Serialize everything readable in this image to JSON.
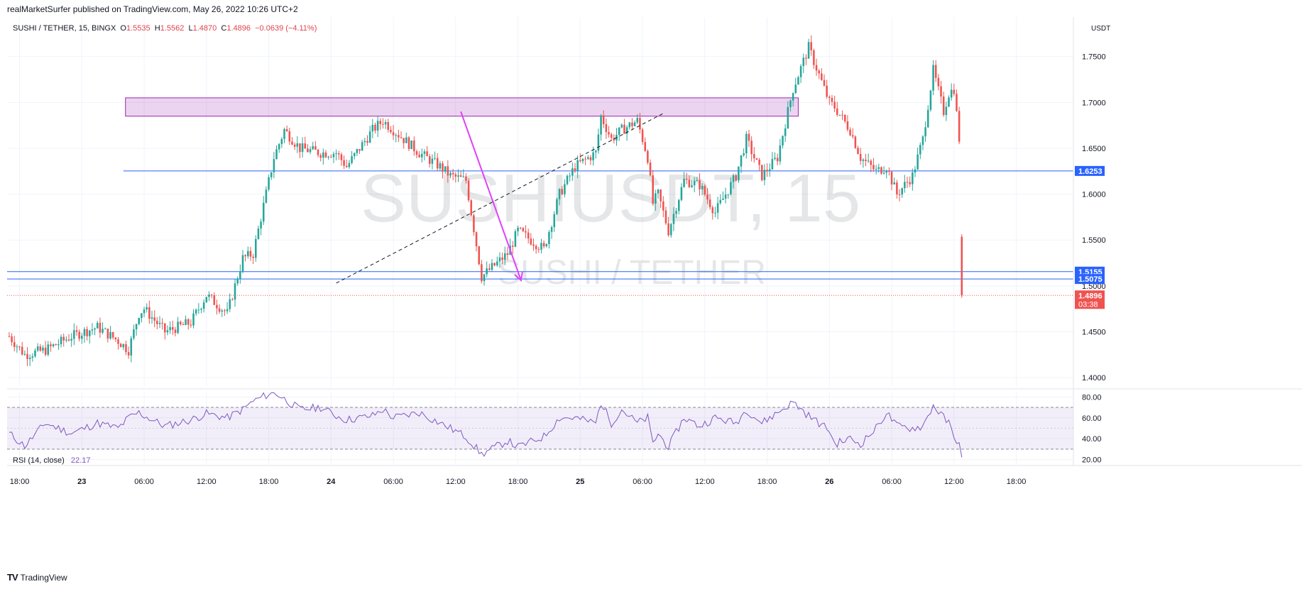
{
  "header": {
    "published": "realMarketSurfer published on TradingView.com, May 26, 2022 10:26 UTC+2"
  },
  "legend": {
    "symbol": "SUSHI / TETHER, 15, BINGX",
    "o_label": "O",
    "o": "1.5535",
    "h_label": "H",
    "h": "1.5562",
    "l_label": "L",
    "l": "1.4870",
    "c_label": "C",
    "c": "1.4896",
    "change": "−0.0639 (−4.11%)"
  },
  "watermark": {
    "symbol": "SUSHIUSDT, 15",
    "name": "SUSHI / TETHER"
  },
  "footer": {
    "brand": "TradingView"
  },
  "colors": {
    "up": "#26a69a",
    "down": "#ef5350",
    "rsi": "#7e57c2",
    "hline": "#2962ff",
    "zone": "#9c27b0",
    "arrow": "#e040fb"
  },
  "chart_data": [
    {
      "type": "candlestick",
      "title": "SUSHI / TETHER, 15, BINGX",
      "ylabel": "USDT",
      "ylim": [
        1.39,
        1.79
      ],
      "y_ticks": [
        "1.4000",
        "1.4500",
        "1.5000",
        "1.5500",
        "1.6000",
        "1.6500",
        "1.7000",
        "1.7500"
      ],
      "x_ticks": [
        "18:00",
        "23",
        "06:00",
        "12:00",
        "18:00",
        "24",
        "06:00",
        "12:00",
        "18:00",
        "25",
        "06:00",
        "12:00",
        "18:00",
        "26",
        "06:00",
        "12:00",
        "18:00"
      ],
      "x_tick_hours": [
        0,
        6,
        12,
        18,
        24,
        30,
        36,
        42,
        48,
        54,
        60,
        66,
        72,
        78,
        84,
        90,
        96
      ],
      "x_range_hours": [
        -1.2,
        101.5
      ],
      "path_hours": [
        -1,
        0.5,
        2.5,
        5,
        7.5,
        9.5,
        10.5,
        11.5,
        12,
        14,
        16.5,
        18,
        20,
        21.5,
        22.5,
        24.5,
        25.5,
        27,
        29,
        30.5,
        31.5,
        34,
        35,
        36,
        38.5,
        40.5,
        41.5,
        43,
        44.5,
        47,
        48,
        50.5,
        52,
        53.5,
        55.5,
        56,
        57,
        58,
        59.5,
        60.5,
        61,
        61.5,
        62.5,
        64,
        65.5,
        67,
        69,
        70,
        71.5,
        73,
        74.5,
        76,
        78,
        78.5,
        80,
        81,
        82.5,
        83.5,
        84.5,
        86,
        87,
        88,
        89,
        89.5,
        90,
        90.5
      ],
      "path_close": [
        1.445,
        1.425,
        1.43,
        1.445,
        1.455,
        1.44,
        1.43,
        1.47,
        1.475,
        1.45,
        1.46,
        1.49,
        1.47,
        1.53,
        1.535,
        1.64,
        1.67,
        1.65,
        1.645,
        1.645,
        1.63,
        1.67,
        1.68,
        1.67,
        1.645,
        1.63,
        1.62,
        1.615,
        1.51,
        1.535,
        1.56,
        1.54,
        1.6,
        1.63,
        1.645,
        1.685,
        1.66,
        1.67,
        1.68,
        1.64,
        1.59,
        1.6,
        1.56,
        1.615,
        1.61,
        1.58,
        1.62,
        1.66,
        1.62,
        1.64,
        1.715,
        1.76,
        1.7,
        1.695,
        1.67,
        1.64,
        1.625,
        1.63,
        1.6,
        1.62,
        1.66,
        1.735,
        1.69,
        1.71,
        1.715,
        1.66
      ],
      "price_lines": [
        {
          "value": 1.6253,
          "label": "1.6253"
        },
        {
          "value": 1.5155,
          "label": "1.5155"
        },
        {
          "value": 1.5075,
          "label": "1.5075"
        }
      ],
      "last_price": {
        "value": 1.4896,
        "label": "1.4896",
        "countdown": "03:38"
      },
      "zone": {
        "h_start": 10.2,
        "h_end": 75,
        "y_top": 1.705,
        "y_bottom": 1.685
      },
      "trend_line": {
        "h1": 30.5,
        "y1": 1.503,
        "h2": 62,
        "y2": 1.688
      },
      "arrow": {
        "h1": 42.5,
        "y1": 1.69,
        "h2": 48.3,
        "y2": 1.506
      }
    },
    {
      "type": "line",
      "title": "RSI (14, close)",
      "last_value": "22.17",
      "ylim": [
        15,
        85
      ],
      "y_ticks": [
        "20.00",
        "40.00",
        "60.00",
        "80.00"
      ],
      "band": [
        30,
        70
      ],
      "mid": 50,
      "path_hours": [
        -1,
        0.5,
        2.5,
        5,
        7.5,
        9.5,
        10.5,
        11.5,
        12,
        14,
        16.5,
        18,
        20,
        21.5,
        22.5,
        24.5,
        25.5,
        27,
        29,
        30.5,
        31.5,
        34,
        35,
        36,
        38.5,
        40.5,
        41.5,
        43,
        44.5,
        47,
        48,
        50.5,
        52,
        53.5,
        55.5,
        56,
        57,
        58,
        59.5,
        60.5,
        61,
        61.5,
        62.5,
        64,
        65.5,
        67,
        69,
        70,
        71.5,
        73,
        74.5,
        76,
        78,
        78.5,
        80,
        81,
        82.5,
        83.5,
        84.5,
        86,
        87,
        88,
        89,
        89.5,
        90,
        90.5
      ],
      "path_values": [
        45,
        33,
        55,
        45,
        55,
        50,
        60,
        65,
        62,
        52,
        58,
        64,
        60,
        68,
        76,
        85,
        78,
        68,
        70,
        62,
        58,
        62,
        68,
        60,
        65,
        55,
        50,
        42,
        25,
        38,
        32,
        42,
        60,
        60,
        55,
        75,
        55,
        68,
        55,
        60,
        35,
        45,
        32,
        60,
        52,
        60,
        55,
        68,
        55,
        65,
        75,
        62,
        48,
        35,
        40,
        35,
        50,
        65,
        52,
        50,
        52,
        72,
        60,
        55,
        40,
        38
      ]
    }
  ]
}
